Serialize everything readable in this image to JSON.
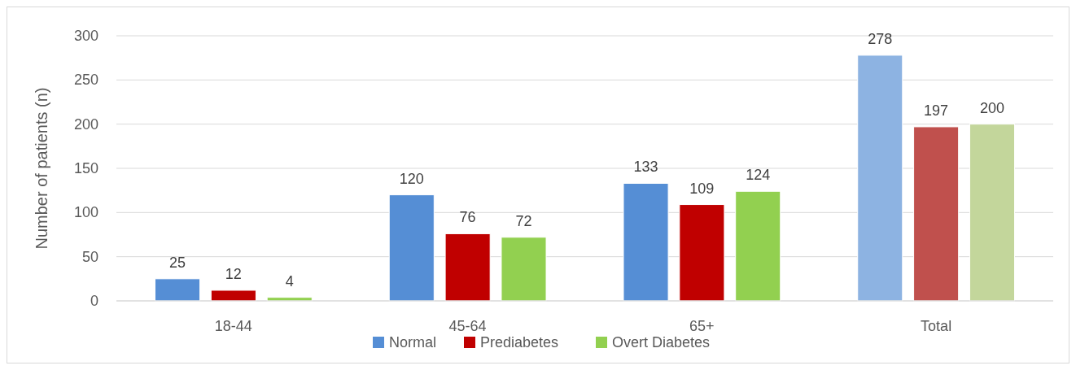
{
  "chart_data": {
    "type": "bar",
    "ylabel": "Number of patients (n)",
    "categories": [
      "18-44",
      "45-64",
      "65+",
      "Total"
    ],
    "series": [
      {
        "name": "Normal",
        "color": "#558ed5",
        "colors": [
          "#558ed5",
          "#558ed5",
          "#558ed5",
          "#8db3e2"
        ],
        "values": [
          25,
          120,
          133,
          278
        ]
      },
      {
        "name": "Prediabetes",
        "color": "#c00000",
        "colors": [
          "#c00000",
          "#c00000",
          "#c00000",
          "#c0504d"
        ],
        "values": [
          12,
          76,
          109,
          197
        ]
      },
      {
        "name": "Overt Diabetes",
        "color": "#92d050",
        "colors": [
          "#92d050",
          "#92d050",
          "#92d050",
          "#c3d69b"
        ],
        "values": [
          4,
          72,
          124,
          200
        ]
      }
    ],
    "ylim": [
      0,
      300
    ],
    "yticks": [
      0,
      50,
      100,
      150,
      200,
      250,
      300
    ],
    "grid": "y",
    "legend": "bottom",
    "data_labels": true
  }
}
